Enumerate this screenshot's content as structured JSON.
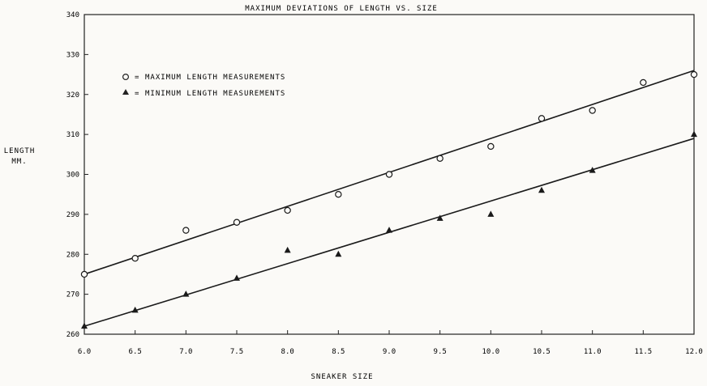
{
  "chart_data": {
    "type": "scatter",
    "title": "MAXIMUM DEVIATIONS OF LENGTH VS. SIZE",
    "xlabel": "SNEAKER SIZE",
    "ylabel": "LENGTH\nMM.",
    "xlim": [
      6.0,
      12.0
    ],
    "ylim": [
      260,
      340
    ],
    "x_ticks": [
      6.0,
      6.5,
      7.0,
      7.5,
      8.0,
      8.5,
      9.0,
      9.5,
      10.0,
      10.5,
      11.0,
      11.5,
      12.0
    ],
    "x_tick_labels": [
      "6.0",
      "6.5",
      "7.0",
      "7.5",
      "8.0",
      "8.5",
      "9.0",
      "9.5",
      "10.0",
      "10.5",
      "11.0",
      "11.5",
      "12.0"
    ],
    "y_ticks": [
      260,
      270,
      280,
      290,
      300,
      310,
      320,
      330,
      340
    ],
    "y_tick_labels": [
      "260",
      "270",
      "280",
      "290",
      "300",
      "310",
      "320",
      "330",
      "340"
    ],
    "grid": false,
    "legend_position": "top-left",
    "series": [
      {
        "name": "MAXIMUM LENGTH MEASUREMENTS",
        "marker": "circle",
        "x": [
          6.0,
          6.5,
          7.0,
          7.5,
          8.0,
          8.5,
          9.0,
          9.5,
          10.0,
          10.5,
          11.0,
          11.5,
          12.0
        ],
        "y": [
          275,
          279,
          286,
          288,
          291,
          295,
          300,
          304,
          307,
          314,
          316,
          323,
          325
        ],
        "fit_line": [
          [
            6.0,
            275
          ],
          [
            12.0,
            326
          ]
        ]
      },
      {
        "name": "MINIMUM LENGTH MEASUREMENTS",
        "marker": "triangle",
        "x": [
          6.0,
          6.5,
          7.0,
          7.5,
          8.0,
          8.5,
          9.0,
          9.5,
          10.0,
          10.5,
          11.0,
          12.0
        ],
        "y": [
          262,
          266,
          270,
          274,
          281,
          280,
          286,
          289,
          290,
          296,
          301,
          310
        ],
        "fit_line": [
          [
            6.0,
            262
          ],
          [
            12.0,
            309
          ]
        ]
      }
    ]
  }
}
